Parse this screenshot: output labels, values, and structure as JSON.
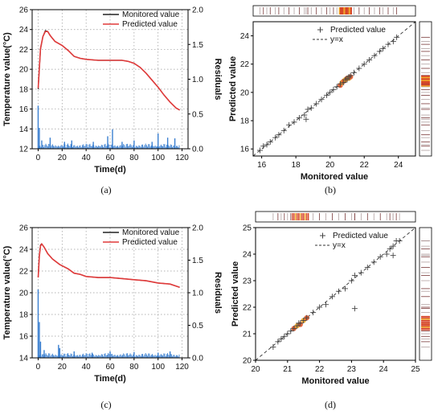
{
  "figure": {
    "captions": [
      "(a)",
      "(b)",
      "(c)",
      "(d)"
    ]
  },
  "chart_data": [
    {
      "id": "a",
      "type": "line",
      "xlabel": "Time(d)",
      "ylabel": "Temperature value(°C)",
      "y2label": "Residuals",
      "xlim": [
        -5,
        125
      ],
      "ylim": [
        12,
        26
      ],
      "y2lim": [
        0,
        2.0
      ],
      "xticks": [
        0,
        20,
        40,
        60,
        80,
        100,
        120
      ],
      "yticks": [
        12,
        14,
        16,
        18,
        20,
        22,
        24,
        26
      ],
      "y2ticks": [
        "0.0",
        "0.5",
        "1.0",
        "1.5",
        "2.0"
      ],
      "grid": true,
      "legend_position": "top-right",
      "series": [
        {
          "name": "Monitored value",
          "color": "#222222",
          "x": [
            0,
            2,
            4,
            6,
            8,
            10,
            14,
            20,
            25,
            30,
            35,
            40,
            50,
            60,
            70,
            75,
            80,
            85,
            90,
            95,
            100,
            105,
            110,
            115,
            118
          ],
          "y": [
            18.0,
            22.0,
            23.3,
            23.9,
            23.8,
            23.4,
            22.8,
            22.4,
            21.9,
            21.3,
            21.1,
            21.0,
            20.9,
            20.9,
            20.9,
            20.8,
            20.6,
            20.2,
            19.6,
            18.9,
            18.2,
            17.4,
            16.7,
            16.1,
            15.9
          ]
        },
        {
          "name": "Predicted value",
          "color": "#e03a3a",
          "x": [
            0,
            2,
            4,
            6,
            8,
            10,
            14,
            20,
            25,
            30,
            35,
            40,
            50,
            60,
            70,
            75,
            80,
            85,
            90,
            95,
            100,
            105,
            110,
            115,
            118
          ],
          "y": [
            18.1,
            22.1,
            23.3,
            23.8,
            23.8,
            23.4,
            22.8,
            22.4,
            21.9,
            21.3,
            21.1,
            21.0,
            20.9,
            20.9,
            20.9,
            20.8,
            20.6,
            20.2,
            19.6,
            18.9,
            18.2,
            17.4,
            16.7,
            16.1,
            15.9
          ]
        }
      ],
      "residuals": {
        "color": "#3a7fd0",
        "spikes": [
          [
            0,
            0.62
          ],
          [
            1,
            0.3
          ],
          [
            3,
            0.12
          ],
          [
            10,
            0.16
          ],
          [
            22,
            0.1
          ],
          [
            28,
            0.12
          ],
          [
            46,
            0.1
          ],
          [
            58,
            0.18
          ],
          [
            62,
            0.28
          ],
          [
            70,
            0.1
          ],
          [
            80,
            0.12
          ],
          [
            95,
            0.1
          ],
          [
            100,
            0.22
          ],
          [
            108,
            0.16
          ],
          [
            114,
            0.15
          ]
        ]
      }
    },
    {
      "id": "b",
      "type": "scatter",
      "xlabel": "Monitored value",
      "ylabel": "Predicted value",
      "xlim": [
        15.5,
        25
      ],
      "ylim": [
        15.5,
        25
      ],
      "xticks": [
        16,
        18,
        20,
        22,
        24
      ],
      "yticks": [
        16,
        18,
        20,
        22,
        24
      ],
      "legend": [
        "Predicted value",
        "y=x"
      ],
      "legend_position": "top-left",
      "grid": false,
      "marker": "+",
      "x": [
        15.9,
        16.1,
        16.3,
        16.5,
        16.8,
        17.0,
        17.3,
        17.6,
        17.9,
        18.2,
        18.5,
        18.7,
        18.9,
        19.2,
        19.5,
        19.8,
        20.0,
        20.2,
        20.4,
        20.6,
        20.8,
        20.9,
        21.0,
        21.0,
        21.1,
        21.2,
        21.4,
        21.7,
        22.0,
        22.3,
        22.6,
        22.9,
        23.1,
        23.4,
        23.7,
        23.9,
        18.6
      ],
      "y": [
        15.9,
        16.2,
        16.3,
        16.5,
        16.8,
        17.0,
        17.3,
        17.7,
        17.9,
        18.2,
        18.4,
        18.8,
        18.9,
        19.2,
        19.5,
        19.8,
        20.0,
        20.2,
        20.4,
        20.6,
        20.7,
        20.9,
        21.0,
        20.9,
        21.1,
        21.2,
        21.4,
        21.7,
        22.0,
        22.3,
        22.6,
        22.9,
        23.1,
        23.4,
        23.6,
        23.9,
        18.1
      ],
      "dense_x": [
        20.6,
        20.7,
        20.8,
        20.9,
        21.0,
        21.1,
        21.2
      ],
      "dense_y": [
        20.5,
        20.7,
        20.8,
        20.9,
        21.0,
        21.0,
        21.1
      ]
    },
    {
      "id": "c",
      "type": "line",
      "xlabel": "Time(d)",
      "ylabel": "Temperature value(°C)",
      "y2label": "Residuals",
      "xlim": [
        -5,
        125
      ],
      "ylim": [
        14,
        26
      ],
      "y2lim": [
        0,
        2.0
      ],
      "xticks": [
        0,
        20,
        40,
        60,
        80,
        100,
        120
      ],
      "yticks": [
        14,
        16,
        18,
        20,
        22,
        24,
        26
      ],
      "y2ticks": [
        "0.0",
        "0.5",
        "1.0",
        "1.5",
        "2.0"
      ],
      "grid": true,
      "legend_position": "top-right",
      "series": [
        {
          "name": "Monitored value",
          "color": "#222222",
          "x": [
            0,
            1,
            2,
            3,
            5,
            8,
            12,
            18,
            25,
            30,
            35,
            40,
            50,
            60,
            70,
            80,
            90,
            100,
            110,
            118
          ],
          "y": [
            21.5,
            23.5,
            24.4,
            24.5,
            24.2,
            23.6,
            23.1,
            22.6,
            22.2,
            21.8,
            21.7,
            21.5,
            21.4,
            21.4,
            21.3,
            21.2,
            21.1,
            20.9,
            20.8,
            20.5
          ]
        },
        {
          "name": "Predicted value",
          "color": "#e03a3a",
          "x": [
            0,
            1,
            2,
            3,
            5,
            8,
            12,
            18,
            25,
            30,
            35,
            40,
            50,
            60,
            70,
            80,
            90,
            100,
            110,
            118
          ],
          "y": [
            21.4,
            23.4,
            24.3,
            24.5,
            24.2,
            23.6,
            23.1,
            22.6,
            22.2,
            21.8,
            21.7,
            21.5,
            21.4,
            21.4,
            21.3,
            21.2,
            21.1,
            20.9,
            20.8,
            20.5
          ]
        }
      ],
      "residuals": {
        "color": "#3a7fd0",
        "spikes": [
          [
            0,
            1.05
          ],
          [
            1,
            0.55
          ],
          [
            2,
            0.25
          ],
          [
            5,
            0.12
          ],
          [
            17,
            0.2
          ],
          [
            18,
            0.15
          ],
          [
            30,
            0.1
          ],
          [
            45,
            0.08
          ],
          [
            60,
            0.1
          ],
          [
            80,
            0.09
          ],
          [
            100,
            0.08
          ],
          [
            110,
            0.1
          ]
        ]
      }
    },
    {
      "id": "d",
      "type": "scatter",
      "xlabel": "Monitored value",
      "ylabel": "Predicted value",
      "xlim": [
        20,
        25
      ],
      "ylim": [
        20,
        25
      ],
      "xticks": [
        20,
        21,
        22,
        23,
        24,
        25
      ],
      "yticks": [
        20,
        21,
        22,
        23,
        24,
        25
      ],
      "legend": [
        "Predicted value",
        "y=x"
      ],
      "legend_position": "top-left",
      "grid": false,
      "marker": "+",
      "x": [
        20.55,
        20.7,
        20.8,
        20.9,
        21.0,
        21.1,
        21.2,
        21.3,
        21.35,
        21.4,
        21.5,
        21.6,
        21.8,
        22.0,
        22.2,
        22.4,
        22.6,
        22.8,
        23.0,
        23.1,
        23.3,
        23.5,
        23.7,
        23.9,
        24.1,
        24.2,
        24.3,
        24.4,
        24.5,
        23.1,
        24.3
      ],
      "y": [
        20.5,
        20.7,
        20.8,
        20.9,
        21.0,
        21.1,
        21.2,
        21.3,
        21.4,
        21.4,
        21.5,
        21.6,
        21.8,
        22.0,
        22.1,
        22.4,
        22.6,
        22.7,
        23.0,
        23.2,
        23.3,
        23.5,
        23.7,
        23.9,
        24.0,
        24.2,
        24.3,
        24.5,
        24.5,
        21.95,
        23.95
      ],
      "dense_x": [
        21.2,
        21.3,
        21.4,
        21.5,
        21.6
      ],
      "dense_y": [
        21.2,
        21.3,
        21.35,
        21.5,
        21.6
      ]
    }
  ]
}
